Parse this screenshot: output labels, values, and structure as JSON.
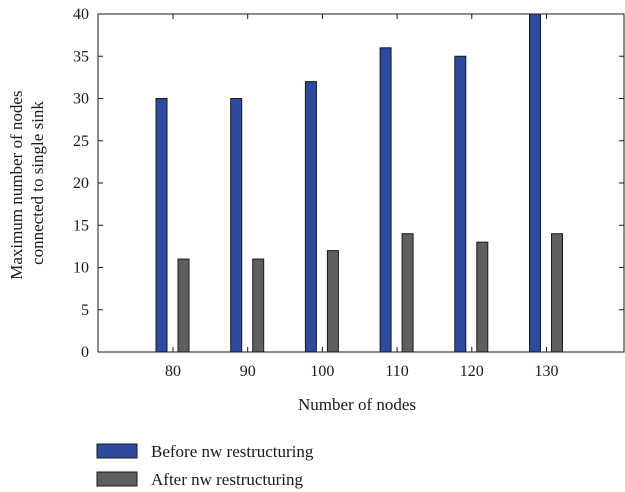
{
  "chart_data": {
    "type": "bar",
    "categories": [
      "80",
      "90",
      "100",
      "110",
      "120",
      "130"
    ],
    "series": [
      {
        "name": "Before nw restructuring",
        "values": [
          30,
          30,
          32,
          36,
          35,
          40
        ],
        "color": "#2c4a9e"
      },
      {
        "name": "After nw restructuring",
        "values": [
          11,
          11,
          12,
          14,
          13,
          14
        ],
        "color": "#5f5f5f"
      }
    ],
    "xlabel": "Number of nodes",
    "ylabel": [
      "Maximum number of nodes",
      "connected to single sink"
    ],
    "ylim": [
      0,
      40
    ],
    "yticks": [
      0,
      5,
      10,
      15,
      20,
      25,
      30,
      35,
      40
    ],
    "grid": false,
    "legend_position": "bottom-left"
  }
}
